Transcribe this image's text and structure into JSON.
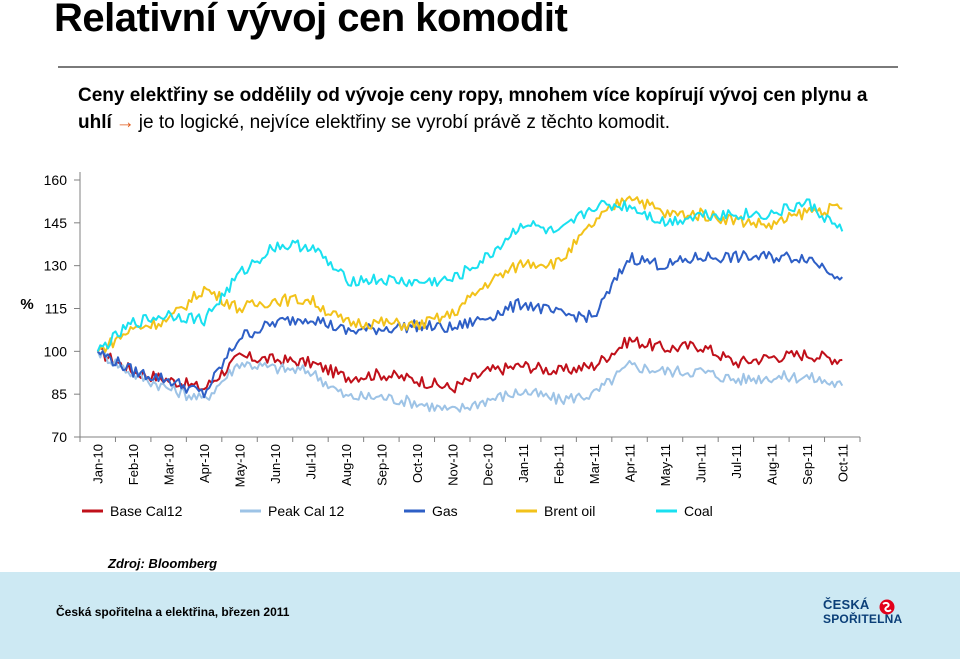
{
  "page": {
    "title": "Relativní vývoj cen komodit",
    "subtitle_bold": "Ceny elektřiny se oddělily od vývoje ceny ropy, mnohem více kopírují vývoj cen plynu a uhlí",
    "subtitle_arrow": "→",
    "subtitle_rest": "je to logické, nejvíce elektřiny se vyrobí právě z těchto komodit.",
    "source": "Zdroj: Bloomberg",
    "footer_text": "Česká spořitelna a elektřina, březen 2011",
    "logo_line1": "ČESKÁ",
    "logo_line2": "SPOŘITELNA",
    "accent_color": "#e2001a",
    "footer_bg": "#cde9f3"
  },
  "chart_data": {
    "type": "line",
    "title": "",
    "ylabel": "%",
    "xlabel": "",
    "ylim": [
      70,
      160
    ],
    "yticks": [
      70,
      85,
      100,
      115,
      130,
      145,
      160
    ],
    "categories": [
      "Jan-10",
      "Feb-10",
      "Mar-10",
      "Apr-10",
      "May-10",
      "Jun-10",
      "Jul-10",
      "Aug-10",
      "Sep-10",
      "Oct-10",
      "Nov-10",
      "Dec-10",
      "Jan-11",
      "Feb-11",
      "Mar-11",
      "Apr-11",
      "May-11",
      "Jun-11",
      "Jul-11",
      "Aug-11",
      "Sep-11",
      "Oct-11"
    ],
    "grid": false,
    "legend_position": "bottom",
    "series": [
      {
        "name": "Base Cal12",
        "color": "#c0101a",
        "values": [
          100,
          93,
          90,
          87,
          98,
          97,
          96,
          91,
          92,
          90,
          87,
          93,
          95,
          93,
          95,
          104,
          101,
          102,
          96,
          98,
          99,
          97
        ]
      },
      {
        "name": "Peak Cal 12",
        "color": "#9dc3e6",
        "values": [
          100,
          92,
          87,
          83,
          96,
          94,
          93,
          84,
          84,
          82,
          79,
          83,
          86,
          83,
          85,
          95,
          93,
          93,
          90,
          91,
          91,
          88
        ]
      },
      {
        "name": "Gas",
        "color": "#2e5fc6",
        "values": [
          100,
          93,
          90,
          85,
          105,
          110,
          112,
          107,
          108,
          109,
          108,
          112,
          117,
          113,
          112,
          133,
          130,
          133,
          133,
          133,
          133,
          126
        ]
      },
      {
        "name": "Brent oil",
        "color": "#f2c21a",
        "values": [
          100,
          108,
          111,
          122,
          115,
          118,
          118,
          110,
          110,
          109,
          113,
          124,
          131,
          131,
          145,
          155,
          148,
          148,
          146,
          144,
          149,
          150
        ]
      },
      {
        "name": "Coal",
        "color": "#19e0f0",
        "values": [
          100,
          110,
          113,
          111,
          127,
          137,
          137,
          125,
          125,
          124,
          125,
          133,
          145,
          141,
          151,
          151,
          145,
          148,
          148,
          148,
          152,
          142
        ]
      }
    ]
  }
}
